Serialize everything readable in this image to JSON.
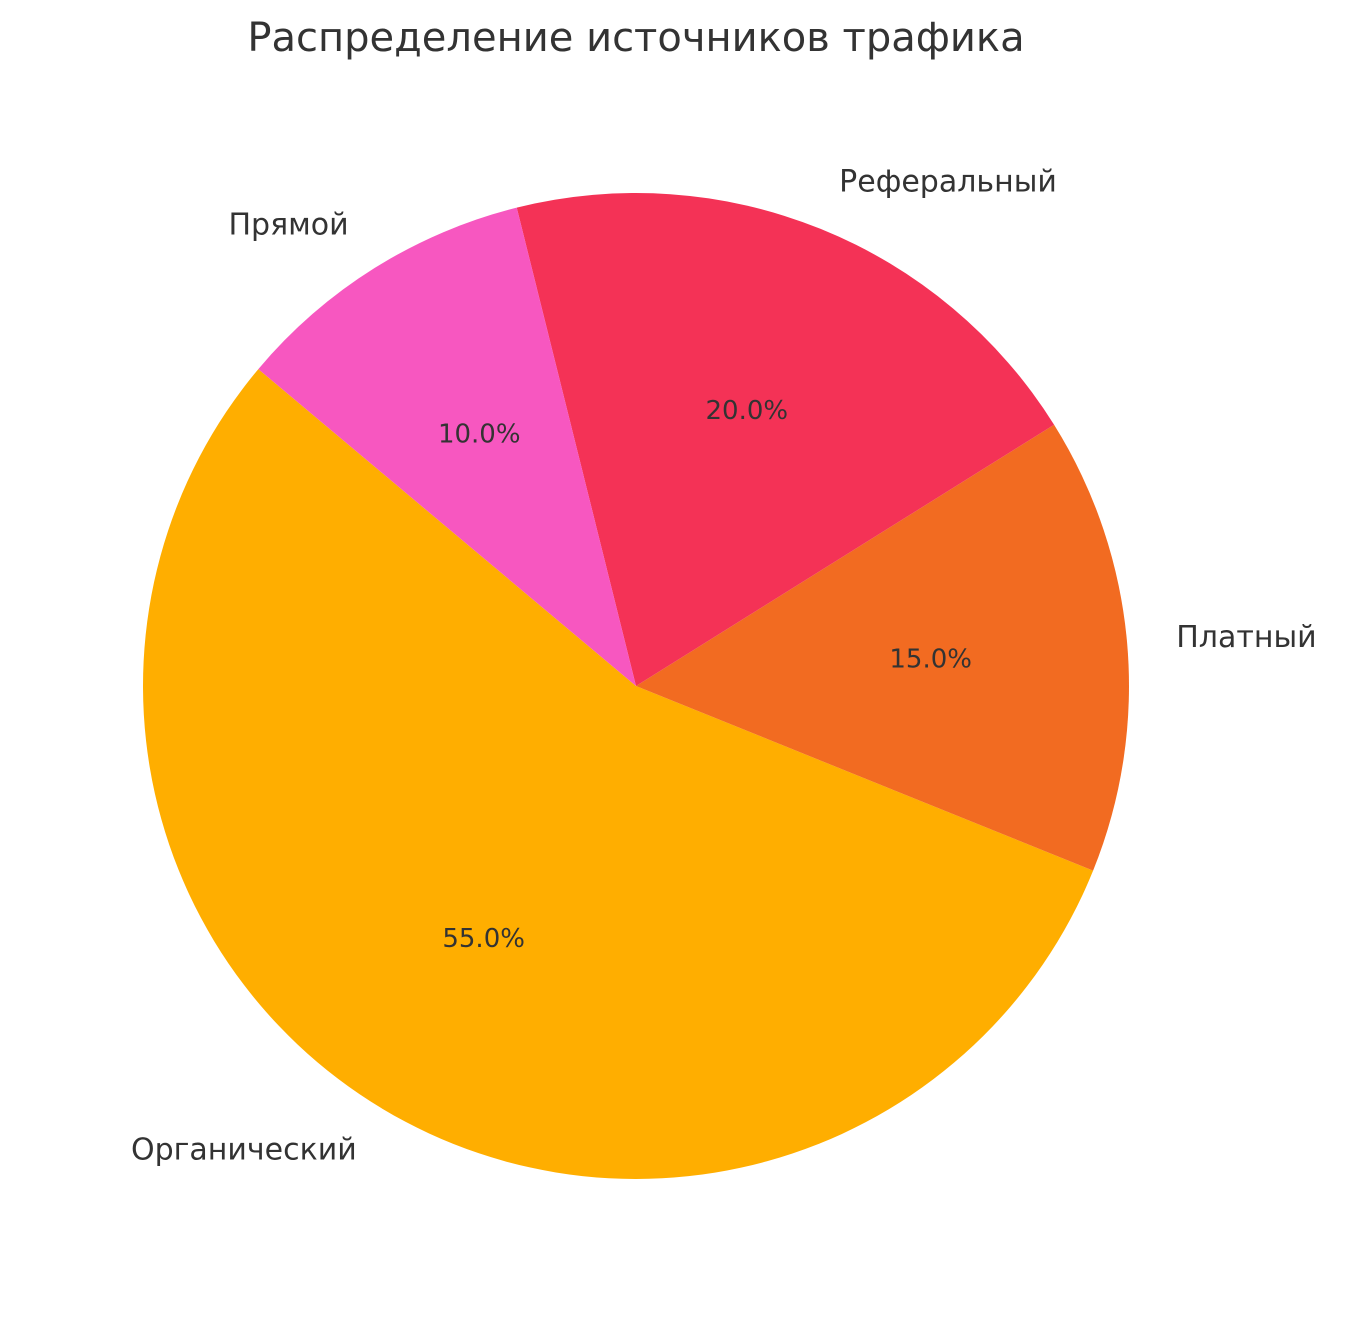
{
  "chart_data": {
    "type": "pie",
    "title": "Распределение источников трафика",
    "categories": [
      "Органический",
      "Платный",
      "Реферальный",
      "Прямой"
    ],
    "values": [
      55,
      15,
      20,
      10
    ],
    "value_labels": [
      "55.0%",
      "15.0%",
      "20.0%",
      "10.0%"
    ],
    "colors": [
      "#ffae00",
      "#f26b21",
      "#f43256",
      "#f757c0"
    ]
  }
}
